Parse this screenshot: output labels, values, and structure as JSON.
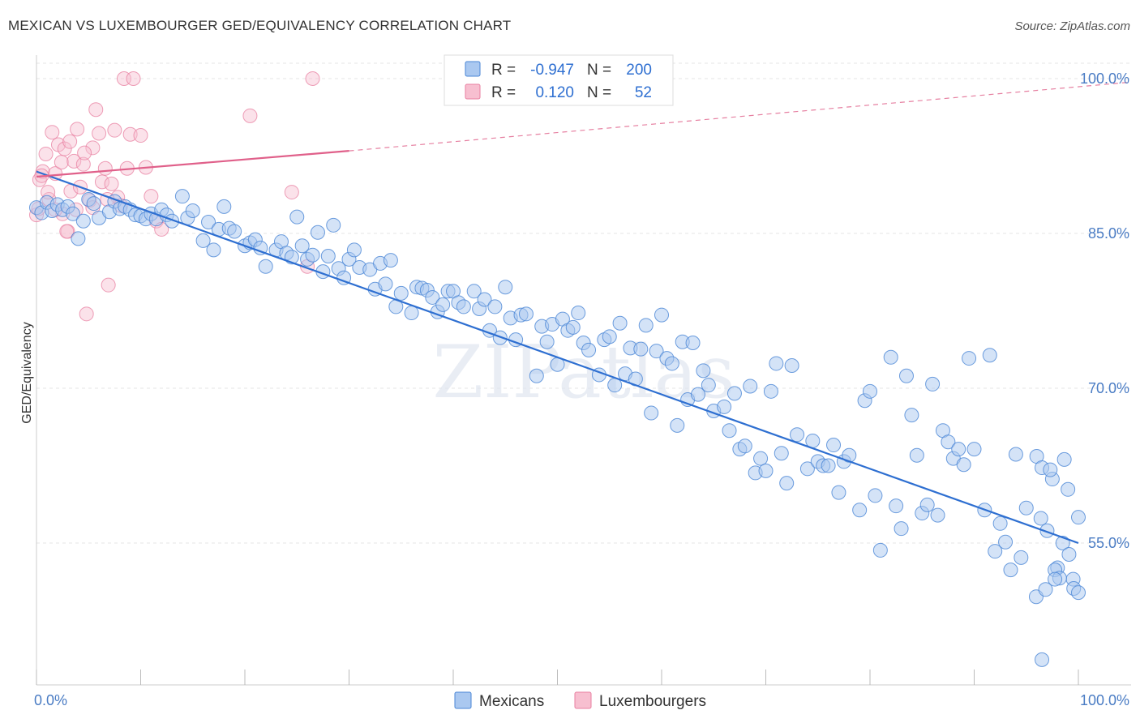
{
  "title": "MEXICAN VS LUXEMBOURGER GED/EQUIVALENCY CORRELATION CHART",
  "source": "Source: ZipAtlas.com",
  "watermark": "ZIPatlas",
  "colors": {
    "blue_fill": "#aac8f0",
    "blue_stroke": "#4a86d6",
    "blue_line": "#2e6fd1",
    "pink_fill": "#f7bfd0",
    "pink_stroke": "#e87fa0",
    "pink_line": "#e0608a",
    "grid": "#e4e4e4",
    "tick_text": "#4a7cc4"
  },
  "legend": {
    "rows": [
      {
        "r_label": "R =",
        "r_value": "-0.947",
        "n_label": "N =",
        "n_value": "200"
      },
      {
        "r_label": "R =",
        "r_value": "0.120",
        "n_label": "N =",
        "n_value": "52"
      }
    ]
  },
  "chart_data": {
    "type": "scatter",
    "title": "MEXICAN VS LUXEMBOURGER GED/EQUIVALENCY CORRELATION CHART",
    "xlabel": "",
    "ylabel": "GED/Equivalency",
    "xlim": [
      0,
      100
    ],
    "ylim": [
      40,
      103
    ],
    "y_ticks": [
      {
        "value": 55,
        "label": "55.0%"
      },
      {
        "value": 70,
        "label": "70.0%"
      },
      {
        "value": 85,
        "label": "85.0%"
      },
      {
        "value": 100,
        "label": "100.0%"
      }
    ],
    "x_ticks": [
      {
        "value": 0,
        "label": "0.0%"
      },
      {
        "value": 100,
        "label": "100.0%"
      }
    ],
    "grid": true,
    "legend_position": "top-center",
    "series": [
      {
        "name": "Mexicans",
        "r": -0.947,
        "n": 200,
        "trend": {
          "x0": 0,
          "y0": 91,
          "x1": 100,
          "y1": 55
        },
        "points": [
          [
            0,
            87.5
          ],
          [
            0.5,
            87
          ],
          [
            1,
            88
          ],
          [
            1.5,
            87.2
          ],
          [
            2,
            87.8
          ],
          [
            2.5,
            87.3
          ],
          [
            3,
            87.6
          ],
          [
            3.5,
            86.9
          ],
          [
            4,
            84.5
          ],
          [
            4.5,
            86.2
          ],
          [
            5,
            88.3
          ],
          [
            5.5,
            87.9
          ],
          [
            6,
            86.5
          ],
          [
            7,
            87.1
          ],
          [
            7.5,
            88.1
          ],
          [
            8,
            87.4
          ],
          [
            8.5,
            87.6
          ],
          [
            9,
            87.3
          ],
          [
            9.5,
            86.8
          ],
          [
            10,
            86.7
          ],
          [
            10.5,
            86.4
          ],
          [
            11,
            86.9
          ],
          [
            11.5,
            86.4
          ],
          [
            12,
            87.3
          ],
          [
            12.5,
            86.8
          ],
          [
            13,
            86.2
          ],
          [
            14,
            88.6
          ],
          [
            14.5,
            86.5
          ],
          [
            15,
            87.2
          ],
          [
            16,
            84.3
          ],
          [
            16.5,
            86.1
          ],
          [
            17,
            83.4
          ],
          [
            17.5,
            85.4
          ],
          [
            18,
            87.6
          ],
          [
            18.5,
            85.5
          ],
          [
            19,
            85.2
          ],
          [
            20,
            83.8
          ],
          [
            20.5,
            84.1
          ],
          [
            21,
            84.4
          ],
          [
            21.5,
            83.6
          ],
          [
            22,
            81.8
          ],
          [
            23,
            83.4
          ],
          [
            23.5,
            84.2
          ],
          [
            24,
            83.1
          ],
          [
            24.5,
            82.7
          ],
          [
            25,
            86.6
          ],
          [
            25.5,
            83.8
          ],
          [
            26,
            82.5
          ],
          [
            26.5,
            82.9
          ],
          [
            27,
            85.1
          ],
          [
            27.5,
            81.3
          ],
          [
            28,
            82.8
          ],
          [
            28.5,
            85.8
          ],
          [
            29,
            81.6
          ],
          [
            29.5,
            80.7
          ],
          [
            30,
            82.5
          ],
          [
            30.5,
            83.4
          ],
          [
            31,
            81.7
          ],
          [
            32,
            81.5
          ],
          [
            32.5,
            79.6
          ],
          [
            33,
            82.1
          ],
          [
            33.5,
            80.1
          ],
          [
            34,
            82.4
          ],
          [
            34.5,
            77.9
          ],
          [
            35,
            79.2
          ],
          [
            36,
            77.3
          ],
          [
            36.5,
            79.8
          ],
          [
            37,
            79.7
          ],
          [
            37.5,
            79.5
          ],
          [
            38,
            78.8
          ],
          [
            38.5,
            77.4
          ],
          [
            39,
            78.1
          ],
          [
            39.5,
            79.4
          ],
          [
            40,
            79.4
          ],
          [
            40.5,
            78.3
          ],
          [
            41,
            77.9
          ],
          [
            42,
            79.4
          ],
          [
            42.5,
            77.7
          ],
          [
            43,
            78.6
          ],
          [
            43.5,
            75.6
          ],
          [
            44,
            77.9
          ],
          [
            44.5,
            74.9
          ],
          [
            45,
            79.8
          ],
          [
            45.5,
            76.8
          ],
          [
            46,
            74.7
          ],
          [
            46.5,
            77.1
          ],
          [
            47,
            77.2
          ],
          [
            48,
            71.2
          ],
          [
            48.5,
            76
          ],
          [
            49,
            74.5
          ],
          [
            49.5,
            76.2
          ],
          [
            50,
            72.3
          ],
          [
            50.5,
            76.7
          ],
          [
            51,
            75.6
          ],
          [
            51.5,
            75.9
          ],
          [
            52,
            77.3
          ],
          [
            52.5,
            74.4
          ],
          [
            53,
            73.7
          ],
          [
            54,
            71.3
          ],
          [
            54.5,
            74.7
          ],
          [
            55,
            75
          ],
          [
            55.5,
            70.3
          ],
          [
            56,
            76.3
          ],
          [
            56.5,
            71.4
          ],
          [
            57,
            73.9
          ],
          [
            57.5,
            70.9
          ],
          [
            58,
            73.8
          ],
          [
            58.5,
            76.1
          ],
          [
            59,
            67.6
          ],
          [
            59.5,
            73.6
          ],
          [
            60,
            77.1
          ],
          [
            60.5,
            72.9
          ],
          [
            61,
            72.4
          ],
          [
            61.5,
            66.4
          ],
          [
            62,
            74.5
          ],
          [
            62.5,
            68.9
          ],
          [
            63,
            74.4
          ],
          [
            63.5,
            69.4
          ],
          [
            64,
            71.7
          ],
          [
            64.5,
            70.3
          ],
          [
            65,
            67.8
          ],
          [
            66,
            68.2
          ],
          [
            66.5,
            65.9
          ],
          [
            67,
            69.5
          ],
          [
            67.5,
            64.1
          ],
          [
            68,
            64.4
          ],
          [
            68.5,
            70.2
          ],
          [
            69,
            61.8
          ],
          [
            69.5,
            63.2
          ],
          [
            70,
            62
          ],
          [
            70.5,
            69.7
          ],
          [
            71,
            72.4
          ],
          [
            71.5,
            63.7
          ],
          [
            72,
            60.8
          ],
          [
            72.5,
            72.2
          ],
          [
            73,
            65.5
          ],
          [
            74,
            62.2
          ],
          [
            74.5,
            64.9
          ],
          [
            75,
            62.9
          ],
          [
            75.5,
            62.5
          ],
          [
            76,
            62.5
          ],
          [
            76.5,
            64.5
          ],
          [
            77,
            59.9
          ],
          [
            77.5,
            62.9
          ],
          [
            78,
            63.5
          ],
          [
            79,
            58.2
          ],
          [
            79.5,
            68.8
          ],
          [
            80,
            69.7
          ],
          [
            80.5,
            59.6
          ],
          [
            81,
            54.3
          ],
          [
            82,
            73
          ],
          [
            82.5,
            58.6
          ],
          [
            83,
            56.4
          ],
          [
            83.5,
            71.2
          ],
          [
            84,
            67.4
          ],
          [
            84.5,
            63.5
          ],
          [
            85,
            57.9
          ],
          [
            85.5,
            58.7
          ],
          [
            86,
            70.4
          ],
          [
            86.5,
            57.7
          ],
          [
            87,
            65.9
          ],
          [
            87.5,
            64.8
          ],
          [
            88,
            63.2
          ],
          [
            88.5,
            64.1
          ],
          [
            89,
            62.6
          ],
          [
            89.5,
            72.9
          ],
          [
            90,
            64.1
          ],
          [
            91,
            58.2
          ],
          [
            91.5,
            73.2
          ],
          [
            92,
            54.2
          ],
          [
            92.5,
            56.9
          ],
          [
            93,
            55.1
          ],
          [
            93.5,
            52.4
          ],
          [
            94,
            63.6
          ],
          [
            94.5,
            53.6
          ],
          [
            95,
            58.4
          ],
          [
            96,
            63.4
          ],
          [
            96.5,
            62.3
          ],
          [
            97,
            56.2
          ],
          [
            97.5,
            61.2
          ],
          [
            98,
            52.6
          ],
          [
            98.5,
            55
          ],
          [
            99,
            60.2
          ],
          [
            99.5,
            51.5
          ],
          [
            100,
            57.5
          ],
          [
            100.5,
            49.8
          ],
          [
            101,
            57.4
          ],
          [
            101.5,
            50.5
          ],
          [
            102,
            62.1
          ],
          [
            102.5,
            52.4
          ],
          [
            103,
            51.6
          ],
          [
            103.5,
            63.1
          ],
          [
            104,
            53.9
          ],
          [
            104.5,
            50.6
          ],
          [
            105,
            50.2
          ],
          [
            96.5,
            43.7
          ],
          [
            102.5,
            51.5
          ]
        ]
      },
      {
        "name": "Luxembourgers",
        "r": 0.12,
        "n": 52,
        "trend": {
          "x0": 0,
          "y0": 90.5,
          "x1": 30,
          "y1": 93
        },
        "trend_dashed": {
          "x0": 30,
          "y0": 93,
          "x1": 100,
          "y1": 99
        },
        "points": [
          [
            0,
            86.8
          ],
          [
            0.3,
            90.2
          ],
          [
            0.6,
            91
          ],
          [
            0.9,
            92.7
          ],
          [
            1.2,
            88.3
          ],
          [
            1.5,
            94.8
          ],
          [
            1.8,
            90.8
          ],
          [
            2.1,
            93.6
          ],
          [
            2.4,
            91.9
          ],
          [
            2.7,
            93.2
          ],
          [
            3,
            85.2
          ],
          [
            3.3,
            89.1
          ],
          [
            3.6,
            92
          ],
          [
            3.9,
            95.1
          ],
          [
            4.2,
            89.5
          ],
          [
            4.5,
            91.7
          ],
          [
            4.8,
            77.2
          ],
          [
            5.1,
            88.2
          ],
          [
            5.4,
            93.3
          ],
          [
            5.7,
            97
          ],
          [
            6,
            94.7
          ],
          [
            6.3,
            90
          ],
          [
            6.6,
            91.3
          ],
          [
            6.9,
            80
          ],
          [
            7.2,
            89.8
          ],
          [
            7.5,
            95
          ],
          [
            7.8,
            88.5
          ],
          [
            8.1,
            87.7
          ],
          [
            8.4,
            100
          ],
          [
            8.7,
            91.3
          ],
          [
            9,
            94.6
          ],
          [
            9.3,
            100
          ],
          [
            10,
            94.5
          ],
          [
            10.5,
            91.4
          ],
          [
            11,
            88.6
          ],
          [
            11.5,
            86.2
          ],
          [
            12,
            85.4
          ],
          [
            2.5,
            86.9
          ],
          [
            3.2,
            93.9
          ],
          [
            4.6,
            92.8
          ],
          [
            5.4,
            87.5
          ],
          [
            6.8,
            88.3
          ],
          [
            26,
            81.8
          ],
          [
            24.5,
            89
          ],
          [
            20.5,
            96.4
          ],
          [
            26.5,
            100
          ],
          [
            1.8,
            87.3
          ],
          [
            0.5,
            90.6
          ],
          [
            2.9,
            85.2
          ],
          [
            3.8,
            87.3
          ],
          [
            1.1,
            89
          ],
          [
            0.2,
            87.4
          ]
        ]
      }
    ]
  },
  "bottom_legend": [
    "Mexicans",
    "Luxembourgers"
  ]
}
